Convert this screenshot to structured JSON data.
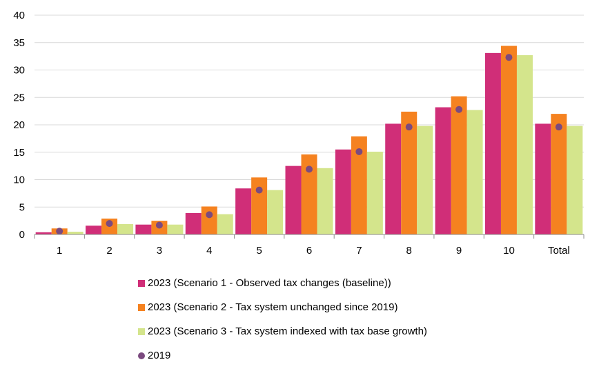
{
  "chart_data": {
    "type": "bar",
    "title": "",
    "xlabel": "",
    "ylabel": "",
    "ylim": [
      0,
      40
    ],
    "yticks": [
      0,
      5,
      10,
      15,
      20,
      25,
      30,
      35,
      40
    ],
    "categories": [
      "1",
      "2",
      "3",
      "4",
      "5",
      "6",
      "7",
      "8",
      "9",
      "10",
      "Total"
    ],
    "series": [
      {
        "name": "2023 (Scenario 1 - Observed tax changes (baseline))",
        "kind": "bar",
        "color": "#d02e78",
        "values": [
          0.4,
          1.6,
          1.8,
          3.9,
          8.4,
          12.5,
          15.5,
          20.2,
          23.2,
          33.1,
          20.2
        ]
      },
      {
        "name": "2023 (Scenario 2 - Tax system unchanged since 2019)",
        "kind": "bar",
        "color": "#f58220",
        "values": [
          1.1,
          2.9,
          2.5,
          5.1,
          10.4,
          14.6,
          17.9,
          22.4,
          25.2,
          34.4,
          22.0
        ]
      },
      {
        "name": "2023 (Scenario 3 - Tax system indexed with tax base growth)",
        "kind": "bar",
        "color": "#d4e58c",
        "values": [
          0.5,
          1.9,
          1.8,
          3.7,
          8.1,
          12.1,
          15.1,
          19.8,
          22.7,
          32.7,
          19.8
        ]
      },
      {
        "name": "2019",
        "kind": "marker",
        "color": "#7b4a7f",
        "values": [
          0.6,
          2.0,
          1.7,
          3.6,
          8.1,
          11.9,
          15.1,
          19.6,
          22.8,
          32.3,
          19.6
        ]
      }
    ],
    "legend_position": "bottom",
    "grid": true
  }
}
